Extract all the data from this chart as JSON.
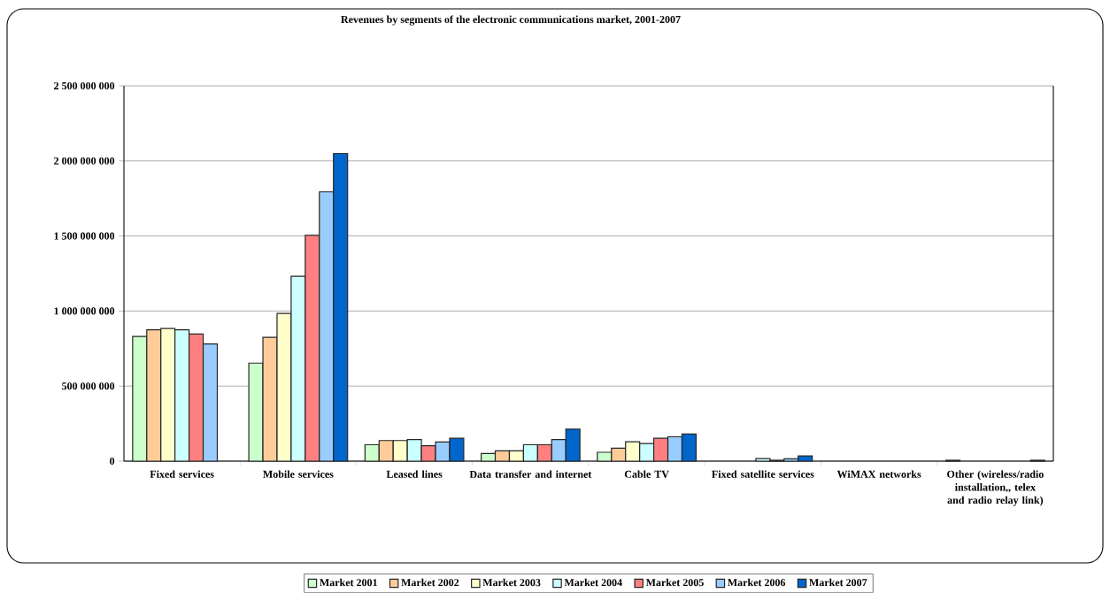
{
  "chart_data": {
    "type": "bar",
    "title": "Revenues by segments of the electronic communications market, 2001-2007",
    "categories": [
      "Fixed services",
      "Mobile services",
      "Leased lines",
      "Data transfer and internet",
      "Cable TV",
      "Fixed satellite services",
      "WiMAX  networks",
      "Other (wireless/radio installation,, telex and radio relay link)"
    ],
    "series": [
      {
        "name": "Market 2001",
        "color": "#ccffcc",
        "values": [
          831000000,
          653000000,
          109000000,
          51000000,
          59000000,
          null,
          null,
          6000000
        ]
      },
      {
        "name": "Market 2002",
        "color": "#ffcc99",
        "values": [
          875000000,
          825000000,
          137000000,
          68000000,
          86000000,
          null,
          null,
          null
        ]
      },
      {
        "name": "Market 2003",
        "color": "#ffffcc",
        "values": [
          884000000,
          984000000,
          137000000,
          68000000,
          129000000,
          null,
          null,
          null
        ]
      },
      {
        "name": "Market 2004",
        "color": "#ccffff",
        "values": [
          875000000,
          1231000000,
          144000000,
          109000000,
          117000000,
          17000000,
          null,
          null
        ]
      },
      {
        "name": "Market 2005",
        "color": "#ff8080",
        "values": [
          847000000,
          1504000000,
          103000000,
          109000000,
          152000000,
          6000000,
          null,
          null
        ]
      },
      {
        "name": "Market 2006",
        "color": "#99ccff",
        "values": [
          780000000,
          1794000000,
          127000000,
          144000000,
          162000000,
          15000000,
          null,
          null
        ]
      },
      {
        "name": "Market 2007",
        "color": "#0066cc",
        "values": [
          null,
          2049000000,
          152000000,
          213000000,
          180000000,
          35000000,
          null,
          6000000
        ]
      }
    ],
    "ylim": [
      0,
      2500000000
    ],
    "yticks": [
      {
        "value": 0,
        "label": "0"
      },
      {
        "value": 500000000,
        "label": "500 000 000"
      },
      {
        "value": 1000000000,
        "label": "1 000 000 000"
      },
      {
        "value": 1500000000,
        "label": "1 500 000 000"
      },
      {
        "value": 2000000000,
        "label": "2 000 000 000"
      },
      {
        "value": 2500000000,
        "label": "2 500 000 000"
      }
    ],
    "grid": "y",
    "legend": "bottom"
  }
}
